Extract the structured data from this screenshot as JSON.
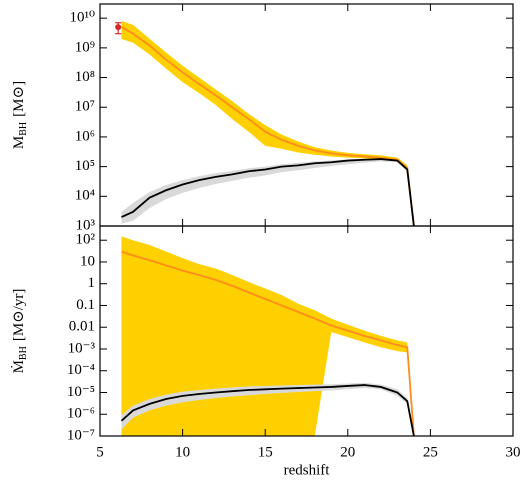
{
  "chart_data": [
    {
      "type": "line",
      "log_scale": true,
      "ylabel": {
        "main": "M",
        "sub": "BH",
        "unit": "[M⊙]"
      },
      "xlim": [
        5,
        30
      ],
      "xticks": [
        5,
        10,
        15,
        20,
        25,
        30
      ],
      "ylim": [
        1000,
        30000000000
      ],
      "yticks": [
        {
          "value": 1000,
          "label": "10³"
        },
        {
          "value": 10000,
          "label": "10⁴"
        },
        {
          "value": 100000,
          "label": "10⁵"
        },
        {
          "value": 1000000,
          "label": "10⁶"
        },
        {
          "value": 10000000,
          "label": "10⁷"
        },
        {
          "value": 100000000,
          "label": "10⁸"
        },
        {
          "value": 1000000000,
          "label": "10⁹"
        },
        {
          "value": 10000000000,
          "label": "10¹⁰"
        }
      ],
      "x": [
        6.3,
        7,
        8,
        9,
        10,
        11,
        12,
        13,
        14,
        15,
        16,
        17,
        18,
        19,
        20,
        21,
        22,
        23,
        23.6,
        24
      ],
      "series": [
        {
          "color": "#ff8c1a",
          "band_color": "#ffd000",
          "values": [
            5000000000.0,
            3000000000.0,
            1200000000.0,
            400000000.0,
            150000000.0,
            60000000.0,
            25000000.0,
            10000000.0,
            4000000.0,
            1500000.0,
            800000.0,
            500000.0,
            350000.0,
            280000.0,
            240000.0,
            220000.0,
            200000.0,
            170000.0,
            90000.0,
            1000
          ],
          "band_lower": [
            2000000000.0,
            1500000000.0,
            600000000.0,
            200000000.0,
            70000000.0,
            30000000.0,
            12000000.0,
            4000000.0,
            1500000.0,
            500000.0,
            400000.0,
            300000.0,
            250000.0,
            220000.0,
            200000.0,
            190000.0,
            170000.0,
            140000.0,
            70000.0,
            1000
          ],
          "band_upper": [
            8000000000.0,
            6000000000.0,
            2000000000.0,
            700000000.0,
            250000000.0,
            100000000.0,
            40000000.0,
            16000000.0,
            6000000.0,
            2500000.0,
            1200000.0,
            700000.0,
            450000.0,
            350000.0,
            290000.0,
            260000.0,
            240000.0,
            200000.0,
            110000.0,
            1000
          ]
        },
        {
          "color": "#000000",
          "band_color": "#d9d9d9",
          "values": [
            2000,
            3000,
            9000,
            16000,
            25000,
            35000,
            45000,
            55000,
            70000,
            80000,
            100000,
            110000,
            130000,
            140000,
            160000,
            170000,
            180000,
            160000,
            80000,
            1000
          ],
          "band_lower": [
            1200,
            1500,
            4000,
            8000,
            13000,
            19000,
            26000,
            33000,
            42000,
            50000,
            65000,
            75000,
            90000,
            105000,
            120000,
            135000,
            150000,
            140000,
            70000,
            1000
          ],
          "band_upper": [
            3000,
            6000,
            14000,
            24000,
            35000,
            48000,
            60000,
            72000,
            88000,
            100000,
            120000,
            135000,
            150000,
            160000,
            175000,
            185000,
            190000,
            170000,
            90000,
            1000
          ]
        }
      ],
      "points": [
        {
          "x": 6.1,
          "y": 5000000000,
          "error": 2000000000,
          "color": "#d62728"
        }
      ]
    },
    {
      "type": "line",
      "log_scale": true,
      "ylabel": {
        "main": "Ṁ",
        "sub": "BH",
        "unit": "[M⊙/yr]"
      },
      "xlabel": "redshift",
      "xlim": [
        5,
        30
      ],
      "xticks": [
        5,
        10,
        15,
        20,
        25,
        30
      ],
      "ylim": [
        1e-07,
        450
      ],
      "yticks": [
        {
          "value": 1e-07,
          "label": "10⁻⁷"
        },
        {
          "value": 1e-06,
          "label": "10⁻⁶"
        },
        {
          "value": 1e-05,
          "label": "10⁻⁵"
        },
        {
          "value": 0.0001,
          "label": "10⁻⁴"
        },
        {
          "value": 0.001,
          "label": "10⁻³"
        },
        0.01,
        0.1,
        1,
        10,
        {
          "value": 100,
          "label": "10²"
        }
      ],
      "x": [
        6.3,
        7,
        8,
        9,
        10,
        11,
        12,
        13,
        14,
        15,
        16,
        17,
        18,
        19,
        20,
        21,
        22,
        23,
        23.6,
        24
      ],
      "series": [
        {
          "color": "#ff8c1a",
          "band_color": "#ffd000",
          "values": [
            30,
            20,
            12,
            7,
            4,
            2.5,
            1.5,
            0.8,
            0.4,
            0.2,
            0.1,
            0.05,
            0.025,
            0.012,
            0.007,
            0.004,
            0.0025,
            0.0015,
            0.0012,
            1e-07
          ],
          "band_lower": [
            1e-07,
            1e-07,
            1e-07,
            1e-07,
            1e-07,
            1e-07,
            1e-07,
            1e-07,
            1e-07,
            1e-07,
            1e-07,
            1e-07,
            1e-07,
            0.006,
            0.0035,
            0.002,
            0.0012,
            0.0008,
            0.0007,
            1e-07
          ],
          "band_upper": [
            150,
            100,
            60,
            30,
            15,
            8,
            5,
            2.5,
            1.2,
            0.6,
            0.3,
            0.12,
            0.06,
            0.025,
            0.013,
            0.007,
            0.004,
            0.0025,
            0.002,
            1e-07
          ]
        },
        {
          "color": "#000000",
          "band_color": "#d9d9d9",
          "values": [
            5e-07,
            1.5e-06,
            3e-06,
            5e-06,
            7e-06,
            8.5e-06,
            1e-05,
            1.15e-05,
            1.3e-05,
            1.4e-05,
            1.5e-05,
            1.6e-05,
            1.7e-05,
            1.8e-05,
            2e-05,
            2.2e-05,
            1.8e-05,
            1e-05,
            4e-06,
            1e-07
          ],
          "band_lower": [
            2e-07,
            7e-07,
            1.5e-06,
            2.5e-06,
            3.5e-06,
            4.5e-06,
            5.5e-06,
            6.5e-06,
            7.5e-06,
            8.5e-06,
            9.5e-06,
            1.05e-05,
            1.15e-05,
            1.25e-05,
            1.4e-05,
            1.6e-05,
            1.4e-05,
            7e-06,
            3e-06,
            1e-07
          ],
          "band_upper": [
            9e-07,
            2.5e-06,
            5e-06,
            8e-06,
            1.1e-05,
            1.3e-05,
            1.5e-05,
            1.7e-05,
            1.9e-05,
            2e-05,
            2.1e-05,
            2.2e-05,
            2.3e-05,
            2.4e-05,
            2.6e-05,
            2.8e-05,
            2.3e-05,
            1.4e-05,
            5.5e-06,
            1e-07
          ]
        }
      ]
    }
  ]
}
